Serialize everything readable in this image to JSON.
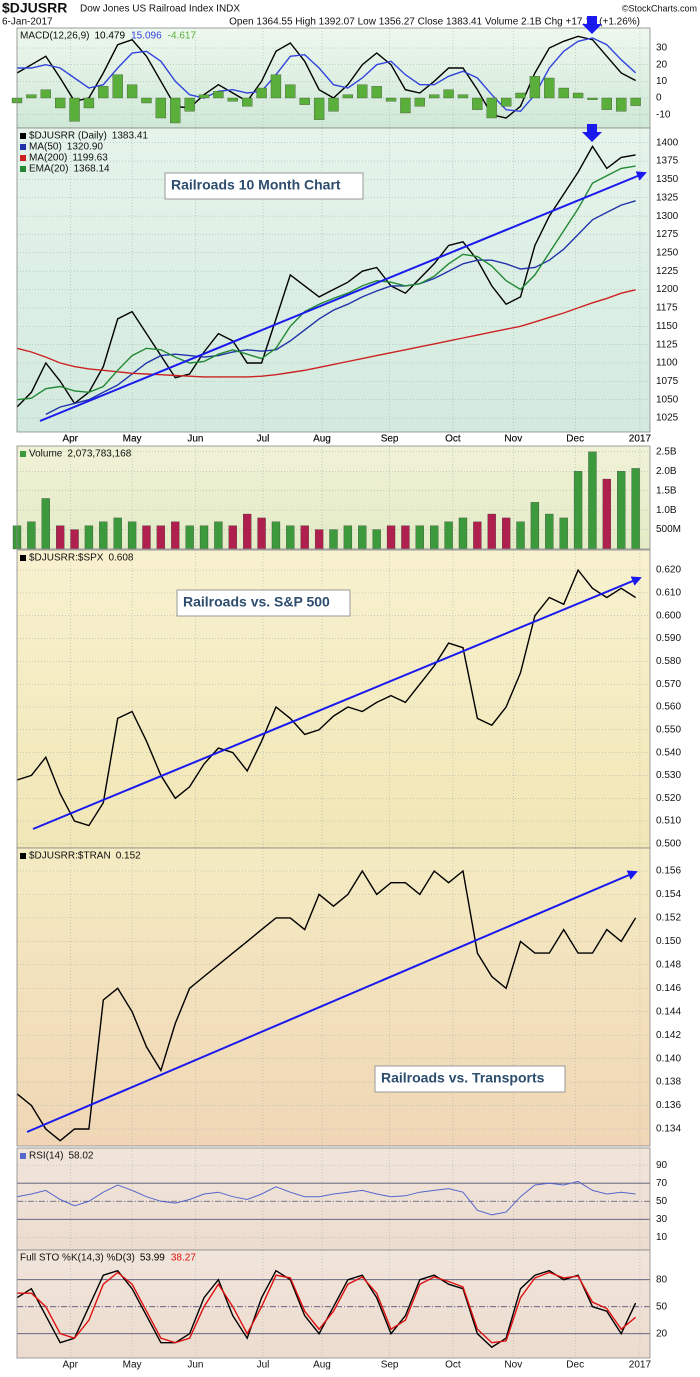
{
  "header": {
    "symbol": "$DJUSRR",
    "name": "Dow Jones US Railroad Index INDX",
    "date": "6-Jan-2017",
    "quote": "Open 1364.55 High 1392.07 Low 1356.27 Close 1383.41 Volume 2.1B Chg +17.18 (+1.26%)",
    "credit": "©StockCharts.com"
  },
  "chart_data": [
    {
      "type": "line",
      "title": "MACD(12,26,9)",
      "ylim": [
        -18,
        42
      ],
      "yticks": [
        30,
        20,
        10,
        0,
        -10
      ],
      "grid": true,
      "series": [
        {
          "style": "line",
          "color": "#000000",
          "values": [
            15,
            20,
            25,
            12,
            -2,
            0,
            15,
            32,
            35,
            25,
            10,
            -5,
            -6,
            2,
            8,
            3,
            -2,
            10,
            28,
            33,
            22,
            5,
            0,
            8,
            20,
            27,
            20,
            5,
            3,
            10,
            18,
            18,
            5,
            -10,
            -12,
            -5,
            15,
            30,
            34,
            37,
            35,
            25,
            15,
            10.479
          ]
        },
        {
          "style": "line",
          "color": "#3344dd",
          "values": [
            18,
            18,
            20,
            18,
            12,
            6,
            8,
            18,
            27,
            28,
            22,
            10,
            2,
            0,
            4,
            5,
            3,
            4,
            14,
            25,
            26,
            18,
            8,
            6,
            12,
            20,
            22,
            14,
            8,
            8,
            13,
            16,
            12,
            2,
            -7,
            -8,
            2,
            18,
            28,
            34,
            36,
            32,
            23,
            15.096
          ]
        },
        {
          "style": "histogram",
          "color": "#5aae3a",
          "values": [
            -3,
            2,
            5,
            -6,
            -14,
            -6,
            7,
            14,
            8,
            -3,
            -12,
            -15,
            -8,
            2,
            4,
            -2,
            -5,
            6,
            14,
            8,
            -4,
            -13,
            -8,
            2,
            8,
            7,
            -2,
            -9,
            -5,
            2,
            5,
            2,
            -7,
            -12,
            -5,
            3,
            13,
            12,
            6,
            3,
            -1,
            -7,
            -8,
            -4.617
          ]
        }
      ]
    },
    {
      "type": "line",
      "annotation": "Railroads 10 Month Chart",
      "ylim": [
        1006,
        1420
      ],
      "yticks": [
        1400,
        1375,
        1350,
        1325,
        1300,
        1275,
        1250,
        1225,
        1200,
        1175,
        1150,
        1125,
        1100,
        1075,
        1050,
        1025
      ],
      "grid": true,
      "xlim": [
        0,
        44
      ],
      "xticks": [
        {
          "value": 3.7,
          "label": "Apr"
        },
        {
          "value": 8,
          "label": "May"
        },
        {
          "value": 12.4,
          "label": "Jun"
        },
        {
          "value": 17.1,
          "label": "Jul"
        },
        {
          "value": 21.2,
          "label": "Aug"
        },
        {
          "value": 25.9,
          "label": "Sep"
        },
        {
          "value": 30.3,
          "label": "Oct"
        },
        {
          "value": 34.5,
          "label": "Nov"
        },
        {
          "value": 38.8,
          "label": "Dec"
        },
        {
          "value": 43.3,
          "label": "2017"
        }
      ],
      "series": [
        {
          "name": "$DJUSRR (Daily)",
          "style": "line",
          "color": "#000000",
          "values": [
            1040,
            1060,
            1100,
            1075,
            1045,
            1060,
            1095,
            1160,
            1170,
            1140,
            1110,
            1080,
            1085,
            1115,
            1140,
            1130,
            1100,
            1100,
            1160,
            1220,
            1205,
            1190,
            1200,
            1210,
            1225,
            1230,
            1205,
            1195,
            1215,
            1235,
            1260,
            1265,
            1240,
            1205,
            1180,
            1190,
            1260,
            1300,
            1330,
            1360,
            1395,
            1365,
            1380,
            1383.41
          ]
        },
        {
          "name": "MA(50)",
          "style": "line",
          "color": "#2233aa",
          "values": [
            null,
            null,
            1030,
            1040,
            1045,
            1050,
            1060,
            1070,
            1085,
            1100,
            1110,
            1112,
            1110,
            1108,
            1110,
            1115,
            1118,
            1116,
            1118,
            1130,
            1145,
            1160,
            1172,
            1180,
            1190,
            1198,
            1205,
            1205,
            1208,
            1215,
            1225,
            1235,
            1240,
            1240,
            1235,
            1228,
            1230,
            1240,
            1255,
            1275,
            1295,
            1305,
            1315,
            1320.9
          ],
          "value_labels": [
            null,
            null,
            null,
            null,
            null,
            null,
            null,
            null,
            null,
            null,
            null,
            null,
            null,
            null,
            null,
            null,
            null,
            null,
            null,
            null,
            null,
            null,
            null,
            null,
            null,
            null,
            null,
            null,
            null,
            null,
            null,
            null,
            null,
            null,
            null,
            null,
            null,
            null,
            null,
            null,
            null,
            null,
            null,
            "1320.90"
          ]
        },
        {
          "name": "MA(200)",
          "style": "line",
          "color": "#cc2222",
          "values": [
            1120,
            1115,
            1108,
            1100,
            1095,
            1092,
            1090,
            1088,
            1086,
            1085,
            1084,
            1083,
            1082,
            1081,
            1081,
            1081,
            1081,
            1082,
            1084,
            1087,
            1090,
            1094,
            1098,
            1102,
            1106,
            1110,
            1114,
            1118,
            1122,
            1126,
            1130,
            1134,
            1138,
            1142,
            1146,
            1150,
            1156,
            1162,
            1168,
            1175,
            1182,
            1188,
            1195,
            1199.63
          ]
        },
        {
          "name": "EMA(20)",
          "style": "line",
          "color": "#228833",
          "values": [
            1050,
            1052,
            1065,
            1068,
            1062,
            1060,
            1068,
            1090,
            1110,
            1120,
            1118,
            1108,
            1100,
            1102,
            1112,
            1118,
            1112,
            1106,
            1120,
            1150,
            1170,
            1180,
            1188,
            1195,
            1205,
            1212,
            1210,
            1205,
            1208,
            1218,
            1235,
            1248,
            1245,
            1232,
            1212,
            1200,
            1220,
            1250,
            1280,
            1310,
            1345,
            1355,
            1365,
            1368.14
          ]
        }
      ]
    },
    {
      "type": "bar",
      "ylim": [
        0,
        2.65
      ],
      "yticks": [
        {
          "value": 2.5,
          "label": "2.5B"
        },
        {
          "value": 2,
          "label": "2.0B"
        },
        {
          "value": 1.5,
          "label": "1.5B"
        },
        {
          "value": 1,
          "label": "1.0B"
        },
        {
          "value": 0.5,
          "label": "500M"
        }
      ],
      "grid": true,
      "series": [
        {
          "name": "Volume",
          "style": "bar",
          "values": [
            0.6,
            0.7,
            1.3,
            0.6,
            0.5,
            0.6,
            0.7,
            0.8,
            0.7,
            0.6,
            0.6,
            0.7,
            0.6,
            0.6,
            0.7,
            0.6,
            0.9,
            0.8,
            0.7,
            0.6,
            0.6,
            0.5,
            0.5,
            0.6,
            0.6,
            0.5,
            0.6,
            0.6,
            0.6,
            0.6,
            0.7,
            0.8,
            0.7,
            0.9,
            0.8,
            0.7,
            1.2,
            0.9,
            0.8,
            2.0,
            2.5,
            1.8,
            2.0,
            2.073783168
          ],
          "value_labels": [
            null,
            null,
            null,
            null,
            null,
            null,
            null,
            null,
            null,
            null,
            null,
            null,
            null,
            null,
            null,
            null,
            null,
            null,
            null,
            null,
            null,
            null,
            null,
            null,
            null,
            null,
            null,
            null,
            null,
            null,
            null,
            null,
            null,
            null,
            null,
            null,
            null,
            null,
            null,
            null,
            null,
            null,
            null,
            "2,073,783,168"
          ],
          "colors": [
            "#3c9a3c",
            "#3c9a3c",
            "#3c9a3c",
            "#b0204e",
            "#b0204e",
            "#3c9a3c",
            "#3c9a3c",
            "#3c9a3c",
            "#3c9a3c",
            "#b0204e",
            "#b0204e",
            "#b0204e",
            "#3c9a3c",
            "#3c9a3c",
            "#3c9a3c",
            "#b0204e",
            "#b0204e",
            "#b0204e",
            "#3c9a3c",
            "#3c9a3c",
            "#b0204e",
            "#b0204e",
            "#3c9a3c",
            "#3c9a3c",
            "#3c9a3c",
            "#3c9a3c",
            "#b0204e",
            "#b0204e",
            "#3c9a3c",
            "#3c9a3c",
            "#3c9a3c",
            "#3c9a3c",
            "#b0204e",
            "#b0204e",
            "#b0204e",
            "#3c9a3c",
            "#3c9a3c",
            "#3c9a3c",
            "#3c9a3c",
            "#3c9a3c",
            "#3c9a3c",
            "#b0204e",
            "#3c9a3c",
            "#3c9a3c"
          ]
        }
      ]
    },
    {
      "type": "line",
      "annotation": "Railroads vs. S&P 500",
      "ylim": [
        0.4982,
        0.6288
      ],
      "yticks": [
        {
          "value": 0.62,
          "label": "0.620"
        },
        {
          "value": 0.61,
          "label": "0.610"
        },
        {
          "value": 0.6,
          "label": "0.600"
        },
        {
          "value": 0.59,
          "label": "0.590"
        },
        {
          "value": 0.58,
          "label": "0.580"
        },
        {
          "value": 0.57,
          "label": "0.570"
        },
        {
          "value": 0.56,
          "label": "0.560"
        },
        {
          "value": 0.55,
          "label": "0.550"
        },
        {
          "value": 0.54,
          "label": "0.540"
        },
        {
          "value": 0.53,
          "label": "0.530"
        },
        {
          "value": 0.52,
          "label": "0.520"
        },
        {
          "value": 0.51,
          "label": "0.510"
        },
        {
          "value": 0.5,
          "label": "0.500"
        }
      ],
      "grid": true,
      "series": [
        {
          "name": "$DJUSRR:$SPX",
          "style": "line",
          "color": "#000000",
          "values": [
            0.528,
            0.53,
            0.538,
            0.522,
            0.51,
            0.508,
            0.518,
            0.555,
            0.558,
            0.545,
            0.53,
            0.52,
            0.525,
            0.535,
            0.542,
            0.54,
            0.532,
            0.545,
            0.56,
            0.555,
            0.548,
            0.55,
            0.556,
            0.56,
            0.558,
            0.562,
            0.565,
            0.562,
            0.57,
            0.578,
            0.588,
            0.586,
            0.555,
            0.552,
            0.56,
            0.575,
            0.6,
            0.608,
            0.605,
            0.62,
            0.612,
            0.608,
            0.612,
            0.608
          ]
        }
      ]
    },
    {
      "type": "line",
      "annotation": "Railroads vs. Transports",
      "ylim": [
        0.13255,
        0.15796
      ],
      "yticks": [
        0.156,
        0.154,
        0.152,
        {
          "value": 0.15,
          "label": "0.150"
        },
        0.148,
        0.146,
        0.144,
        0.142,
        {
          "value": 0.14,
          "label": "0.140"
        },
        0.138,
        0.136,
        0.134
      ],
      "grid": true,
      "series": [
        {
          "name": "$DJUSRR:$TRAN",
          "style": "line",
          "color": "#000000",
          "values": [
            0.137,
            0.136,
            0.134,
            0.133,
            0.134,
            0.134,
            0.145,
            0.146,
            0.144,
            0.141,
            0.139,
            0.143,
            0.146,
            0.147,
            0.148,
            0.149,
            0.15,
            0.151,
            0.152,
            0.152,
            0.151,
            0.154,
            0.153,
            0.154,
            0.156,
            0.154,
            0.155,
            0.155,
            0.154,
            0.156,
            0.155,
            0.156,
            0.149,
            0.147,
            0.146,
            0.15,
            0.149,
            0.149,
            0.151,
            0.149,
            0.149,
            0.151,
            0.15,
            0.152
          ]
        }
      ]
    },
    {
      "type": "line",
      "ylim": [
        -4,
        109
      ],
      "yticks": [
        90,
        70,
        50,
        30,
        10
      ],
      "grid": true,
      "reference_lines": [
        70,
        50,
        30
      ],
      "series": [
        {
          "name": "RSI(14)",
          "style": "line",
          "color": "#5566cc",
          "values": [
            55,
            58,
            62,
            52,
            45,
            50,
            60,
            68,
            62,
            55,
            50,
            48,
            52,
            58,
            60,
            55,
            52,
            58,
            66,
            60,
            55,
            55,
            58,
            60,
            62,
            58,
            55,
            56,
            60,
            62,
            64,
            60,
            40,
            35,
            38,
            55,
            68,
            70,
            68,
            72,
            62,
            58,
            60,
            58.02
          ]
        }
      ]
    },
    {
      "type": "line",
      "title": "Full STO %K(14,3) %D(3)",
      "ylim": [
        -7,
        113
      ],
      "yticks": [
        80,
        50,
        20
      ],
      "grid": true,
      "reference_lines": [
        80,
        50,
        20
      ],
      "xlim": [
        0,
        44
      ],
      "xticks": [
        {
          "value": 3.7,
          "label": "Apr"
        },
        {
          "value": 8,
          "label": "May"
        },
        {
          "value": 12.4,
          "label": "Jun"
        },
        {
          "value": 17.1,
          "label": "Jul"
        },
        {
          "value": 21.2,
          "label": "Aug"
        },
        {
          "value": 25.9,
          "label": "Sep"
        },
        {
          "value": 30.3,
          "label": "Oct"
        },
        {
          "value": 34.5,
          "label": "Nov"
        },
        {
          "value": 38.8,
          "label": "Dec"
        },
        {
          "value": 43.3,
          "label": "2017"
        }
      ],
      "series": [
        {
          "style": "line",
          "color": "#000000",
          "values": [
            60,
            70,
            40,
            10,
            15,
            50,
            85,
            90,
            70,
            40,
            10,
            10,
            20,
            60,
            80,
            40,
            15,
            60,
            90,
            80,
            40,
            20,
            50,
            80,
            85,
            60,
            20,
            40,
            80,
            85,
            75,
            70,
            20,
            5,
            15,
            70,
            85,
            90,
            80,
            85,
            50,
            45,
            20,
            53.99
          ]
        },
        {
          "style": "line",
          "color": "#dd1111",
          "values": [
            65,
            65,
            50,
            20,
            15,
            35,
            75,
            88,
            75,
            45,
            15,
            10,
            15,
            50,
            75,
            50,
            20,
            50,
            85,
            82,
            45,
            25,
            45,
            75,
            83,
            65,
            25,
            35,
            75,
            83,
            78,
            72,
            25,
            10,
            12,
            60,
            82,
            88,
            82,
            84,
            55,
            48,
            25,
            38.27
          ]
        }
      ]
    }
  ]
}
